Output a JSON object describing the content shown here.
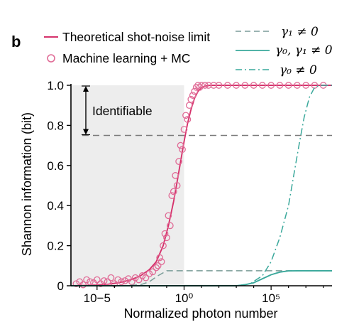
{
  "panel_label": "b",
  "colors": {
    "theory": "#d6336c",
    "ml_markers": "#e06b96",
    "gamma": "#3aa89b",
    "gray_dash": "#7a7a7a",
    "shade": "#ededed",
    "axis": "#000000"
  },
  "chart_data": {
    "type": "line",
    "xlabel": "Normalized photon number",
    "ylabel": "Shannon information (bit)",
    "xscale": "log",
    "xlim_log10": [
      -6.5,
      8.5
    ],
    "ylim": [
      0,
      1.0
    ],
    "x_ticks": [
      {
        "log10": -5,
        "label": "10−5"
      },
      {
        "log10": 0,
        "label": "10⁰"
      },
      {
        "log10": 5,
        "label": "10⁵"
      }
    ],
    "y_ticks": [
      {
        "value": 0,
        "label": "0"
      },
      {
        "value": 0.2,
        "label": "0.2"
      },
      {
        "value": 0.4,
        "label": "0.4"
      },
      {
        "value": 0.6,
        "label": "0.6"
      },
      {
        "value": 0.8,
        "label": "0.8"
      },
      {
        "value": 1.0,
        "label": "1.0"
      }
    ],
    "threshold": {
      "value": 0.75,
      "label": "Identifiable"
    },
    "shaded_region": {
      "x_log10": [
        -6.5,
        0
      ],
      "y": [
        0,
        1.0
      ]
    },
    "legend_placement": "top",
    "series": [
      {
        "name": "Theoretical shot-noise limit",
        "style": "solid",
        "color": "#d6336c",
        "x_log10": [
          -6.5,
          -5.5,
          -4.5,
          -4,
          -3.5,
          -3,
          -2.5,
          -2,
          -1.6,
          -1.2,
          -0.9,
          -0.6,
          -0.4,
          -0.2,
          0,
          0.2,
          0.4,
          0.6,
          0.8,
          1.0,
          1.2,
          1.5,
          2,
          3,
          5,
          8.5
        ],
        "y": [
          0.0,
          0.002,
          0.006,
          0.012,
          0.02,
          0.032,
          0.05,
          0.08,
          0.12,
          0.2,
          0.3,
          0.42,
          0.52,
          0.62,
          0.72,
          0.81,
          0.88,
          0.935,
          0.97,
          0.988,
          0.996,
          1.0,
          1.0,
          1.0,
          1.0,
          1.0
        ]
      },
      {
        "name": "Machine learning + MC",
        "style": "markers",
        "color": "#e06b96",
        "x_log10": [
          -6.2,
          -6.0,
          -5.8,
          -5.6,
          -5.4,
          -5.2,
          -5.0,
          -4.8,
          -4.6,
          -4.4,
          -4.2,
          -4.0,
          -3.8,
          -3.6,
          -3.4,
          -3.2,
          -3.0,
          -2.8,
          -2.6,
          -2.4,
          -2.2,
          -2.0,
          -1.8,
          -1.6,
          -1.5,
          -1.4,
          -1.3,
          -1.2,
          -1.1,
          -1.0,
          -0.9,
          -0.8,
          -0.7,
          -0.6,
          -0.5,
          -0.4,
          -0.3,
          -0.2,
          -0.1,
          0.0,
          0.1,
          0.2,
          0.3,
          0.4,
          0.5,
          0.6,
          0.7,
          0.8,
          0.9,
          1.0,
          1.2,
          1.4,
          1.7,
          2.0,
          2.5,
          3.0,
          3.5,
          4.0,
          4.5,
          5.0,
          5.5,
          6.0,
          6.5,
          7.0,
          7.5,
          8.0
        ],
        "y": [
          0.01,
          0.02,
          0.005,
          0.03,
          0.02,
          0.015,
          0.03,
          0.01,
          0.025,
          0.02,
          0.04,
          0.01,
          0.03,
          0.02,
          0.025,
          0.035,
          0.02,
          0.04,
          0.03,
          0.05,
          0.04,
          0.06,
          0.07,
          0.09,
          0.1,
          0.14,
          0.12,
          0.2,
          0.26,
          0.24,
          0.35,
          0.3,
          0.45,
          0.47,
          0.55,
          0.5,
          0.62,
          0.7,
          0.68,
          0.78,
          0.85,
          0.83,
          0.9,
          0.93,
          0.95,
          0.97,
          0.99,
          1.0,
          0.99,
          1.0,
          1.0,
          1.0,
          1.0,
          1.0,
          1.0,
          1.0,
          1.0,
          1.0,
          1.0,
          1.0,
          1.0,
          1.0,
          1.0,
          1.0,
          1.0,
          1.0
        ]
      },
      {
        "name": "γ₁ ≠ 0",
        "style": "dash",
        "color": "#7a9c98",
        "x_log10": [
          -6.5,
          -3.5,
          -2.5,
          -2.0,
          -1.5,
          -1.0,
          0.0,
          8.5
        ],
        "y": [
          0.0,
          0.0,
          0.005,
          0.02,
          0.05,
          0.075,
          0.075,
          0.075
        ]
      },
      {
        "name": "γ₀, γ₁ ≠ 0",
        "style": "solid",
        "color": "#3aa89b",
        "x_log10": [
          -6.5,
          3.0,
          3.5,
          4.0,
          4.5,
          5.0,
          5.5,
          6.0,
          6.5,
          7.0,
          8.5
        ],
        "y": [
          0.0,
          0.0,
          0.005,
          0.015,
          0.035,
          0.055,
          0.068,
          0.074,
          0.075,
          0.075,
          0.075
        ]
      },
      {
        "name": "γ₀ ≠ 0",
        "style": "dashdot",
        "color": "#3aa89b",
        "x_log10": [
          -6.5,
          3.0,
          3.8,
          4.5,
          5.0,
          5.5,
          6.0,
          6.3,
          6.6,
          6.9,
          7.2,
          7.5,
          7.8,
          8.5
        ],
        "y": [
          0.0,
          0.0,
          0.01,
          0.05,
          0.12,
          0.24,
          0.4,
          0.55,
          0.7,
          0.84,
          0.94,
          0.99,
          1.0,
          1.0
        ]
      }
    ]
  },
  "legend": {
    "items": [
      {
        "label": "Theoretical shot-noise limit"
      },
      {
        "label": "Machine learning + MC"
      },
      {
        "label": "γ₁ ≠ 0"
      },
      {
        "label": "γ₀, γ₁ ≠ 0"
      },
      {
        "label": "γ₀ ≠ 0"
      }
    ]
  }
}
